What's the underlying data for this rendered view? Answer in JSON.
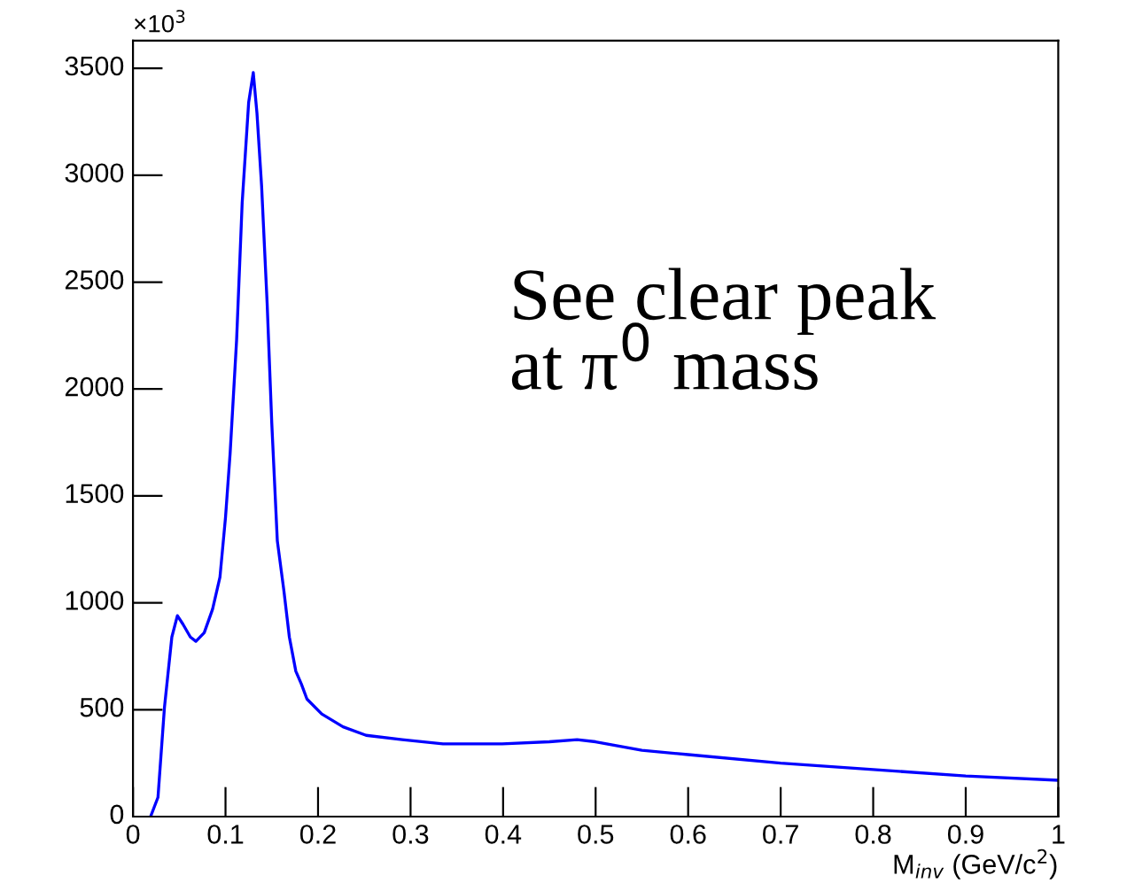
{
  "chart_data": {
    "type": "line",
    "xlabel": "M$_{inv}$ (GeV/c$^{2}$)",
    "annotations": [
      "×10$^{3}$",
      "See clear peak\nat π$^{0}$ mass"
    ],
    "x": [
      0.019,
      0.027,
      0.034,
      0.042,
      0.048,
      0.054,
      0.062,
      0.068,
      0.077,
      0.086,
      0.094,
      0.1,
      0.105,
      0.112,
      0.118,
      0.125,
      0.13,
      0.134,
      0.139,
      0.145,
      0.15,
      0.156,
      0.163,
      0.169,
      0.176,
      0.182,
      0.188,
      0.204,
      0.227,
      0.252,
      0.291,
      0.335,
      0.399,
      0.45,
      0.48,
      0.5,
      0.55,
      0.6,
      0.7,
      0.8,
      0.9,
      1.0
    ],
    "series": [
      {
        "color": "#0000ff",
        "values": [
          0,
          90,
          510,
          840,
          940,
          900,
          840,
          820,
          860,
          970,
          1120,
          1400,
          1700,
          2230,
          2870,
          3340,
          3480,
          3290,
          2950,
          2400,
          1840,
          1290,
          1060,
          840,
          680,
          620,
          550,
          480,
          420,
          380,
          360,
          340,
          340,
          350,
          360,
          350,
          310,
          290,
          250,
          220,
          190,
          170
        ]
      }
    ],
    "xlim": [
      0,
      1
    ],
    "ylim": [
      0,
      3630
    ],
    "xticks": [
      0,
      0.1,
      0.2,
      0.3,
      0.4,
      0.5,
      0.6,
      0.7,
      0.8,
      0.9,
      1
    ],
    "yticks": [
      0,
      500,
      1000,
      1500,
      2000,
      2500,
      3000,
      3500
    ],
    "grid": false,
    "legend": false
  }
}
